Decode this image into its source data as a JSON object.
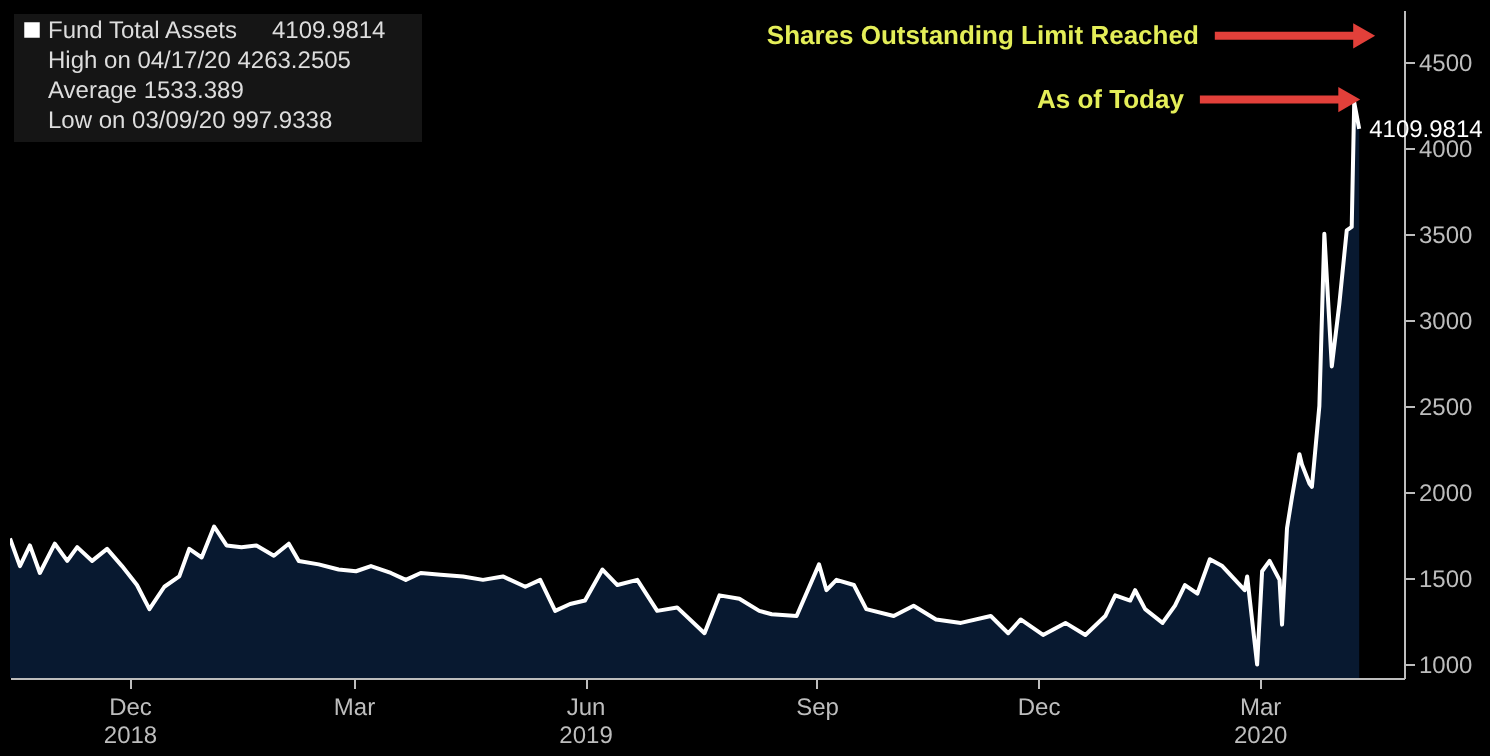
{
  "chart_data": {
    "type": "area",
    "legend": "top left",
    "grid": false,
    "xlim": [
      "2018-10-25",
      "2020-05-07"
    ],
    "xticks": [
      {
        "value": "2018-12-12",
        "label": "Dec\n2018"
      },
      {
        "value": "2019-03-12",
        "label": "Mar"
      },
      {
        "value": "2019-06-13",
        "label": "Jun\n2019"
      },
      {
        "value": "2019-09-14",
        "label": "Sep"
      },
      {
        "value": "2019-12-12",
        "label": "Dec"
      },
      {
        "value": "2020-03-10",
        "label": "Mar\n2020"
      }
    ],
    "ylim": [
      920,
      4800
    ],
    "yticks": [
      1000,
      1500,
      2000,
      2500,
      3000,
      3500,
      4000,
      4500
    ],
    "annotations": [
      "4109.9814",
      "High on 04/17/20 4263.2505",
      "Average 1533.389",
      "Low on 03/09/20 997.9338",
      {
        "text": "Shares Outstanding Limit Reached",
        "x": "2020-04-21",
        "y": 4650
      },
      {
        "text": "As of Today",
        "x": "2020-04-15",
        "y": 4280
      }
    ],
    "series": [
      {
        "name": "Fund Total Assets",
        "color": "#ffffff",
        "x": [
          "2018-10-25",
          "2018-10-29",
          "2018-11-02",
          "2018-11-06",
          "2018-11-12",
          "2018-11-17",
          "2018-11-21",
          "2018-11-27",
          "2018-12-03",
          "2018-12-09",
          "2018-12-15",
          "2018-12-20",
          "2018-12-26",
          "2019-01-01",
          "2019-01-05",
          "2019-01-10",
          "2019-01-15",
          "2019-01-20",
          "2019-01-26",
          "2019-02-01",
          "2019-02-08",
          "2019-02-14",
          "2019-02-18",
          "2019-02-26",
          "2019-03-06",
          "2019-03-13",
          "2019-03-19",
          "2019-03-27",
          "2019-04-02",
          "2019-04-08",
          "2019-04-16",
          "2019-04-25",
          "2019-05-03",
          "2019-05-11",
          "2019-05-20",
          "2019-05-26",
          "2019-06-01",
          "2019-06-07",
          "2019-06-13",
          "2019-06-20",
          "2019-06-26",
          "2019-07-04",
          "2019-07-12",
          "2019-07-20",
          "2019-07-31",
          "2019-08-06",
          "2019-08-14",
          "2019-08-22",
          "2019-08-27",
          "2019-09-06",
          "2019-09-15",
          "2019-09-18",
          "2019-09-22",
          "2019-09-29",
          "2019-10-04",
          "2019-10-15",
          "2019-10-23",
          "2019-11-01",
          "2019-11-11",
          "2019-11-23",
          "2019-11-30",
          "2019-12-05",
          "2019-12-14",
          "2019-12-23",
          "2019-12-31",
          "2020-01-08",
          "2020-01-12",
          "2020-01-18",
          "2020-01-20",
          "2020-01-24",
          "2020-01-31",
          "2020-02-05",
          "2020-02-09",
          "2020-02-14",
          "2020-02-19",
          "2020-02-24",
          "2020-03-04",
          "2020-03-05",
          "2020-03-09",
          "2020-03-11",
          "2020-03-14",
          "2020-03-18",
          "2020-03-19",
          "2020-03-21",
          "2020-03-23",
          "2020-03-26",
          "2020-03-27",
          "2020-03-30",
          "2020-03-31",
          "2020-04-03",
          "2020-04-05",
          "2020-04-08",
          "2020-04-11",
          "2020-04-14",
          "2020-04-16",
          "2020-04-17",
          "2020-04-19"
        ],
        "values": [
          1730,
          1570,
          1690,
          1530,
          1700,
          1600,
          1680,
          1600,
          1670,
          1570,
          1460,
          1320,
          1450,
          1510,
          1670,
          1620,
          1800,
          1690,
          1680,
          1690,
          1630,
          1700,
          1600,
          1580,
          1550,
          1540,
          1570,
          1530,
          1490,
          1530,
          1520,
          1510,
          1490,
          1510,
          1450,
          1490,
          1310,
          1350,
          1370,
          1550,
          1460,
          1490,
          1310,
          1330,
          1180,
          1400,
          1380,
          1310,
          1290,
          1280,
          1580,
          1430,
          1490,
          1460,
          1320,
          1280,
          1340,
          1260,
          1240,
          1280,
          1180,
          1260,
          1170,
          1240,
          1170,
          1280,
          1400,
          1370,
          1430,
          1320,
          1240,
          1340,
          1460,
          1410,
          1610,
          1570,
          1430,
          1510,
          997.9338,
          1540,
          1600,
          1490,
          1230,
          1790,
          1970,
          2220,
          2160,
          2050,
          2030,
          2500,
          3500,
          2730,
          3090,
          3520,
          3540,
          4263.2505,
          4109.9814
        ],
        "value_labels": [
          null,
          null,
          null,
          null,
          null,
          null,
          null,
          null,
          null,
          null,
          null,
          null,
          null,
          null,
          null,
          null,
          null,
          null,
          null,
          null,
          null,
          null,
          null,
          null,
          null,
          null,
          null,
          null,
          null,
          null,
          null,
          null,
          null,
          null,
          null,
          null,
          null,
          null,
          null,
          null,
          null,
          null,
          null,
          null,
          null,
          null,
          null,
          null,
          null,
          null,
          null,
          null,
          null,
          null,
          null,
          null,
          null,
          null,
          null,
          null,
          null,
          null,
          null,
          null,
          null,
          null,
          null,
          null,
          null,
          null,
          null,
          null,
          null,
          null,
          null,
          null,
          null,
          null,
          null,
          null,
          null,
          null,
          null,
          null,
          null,
          null,
          null,
          null,
          null,
          null,
          null,
          null,
          null,
          null,
          null,
          null,
          "4109.9814"
        ]
      }
    ]
  }
}
